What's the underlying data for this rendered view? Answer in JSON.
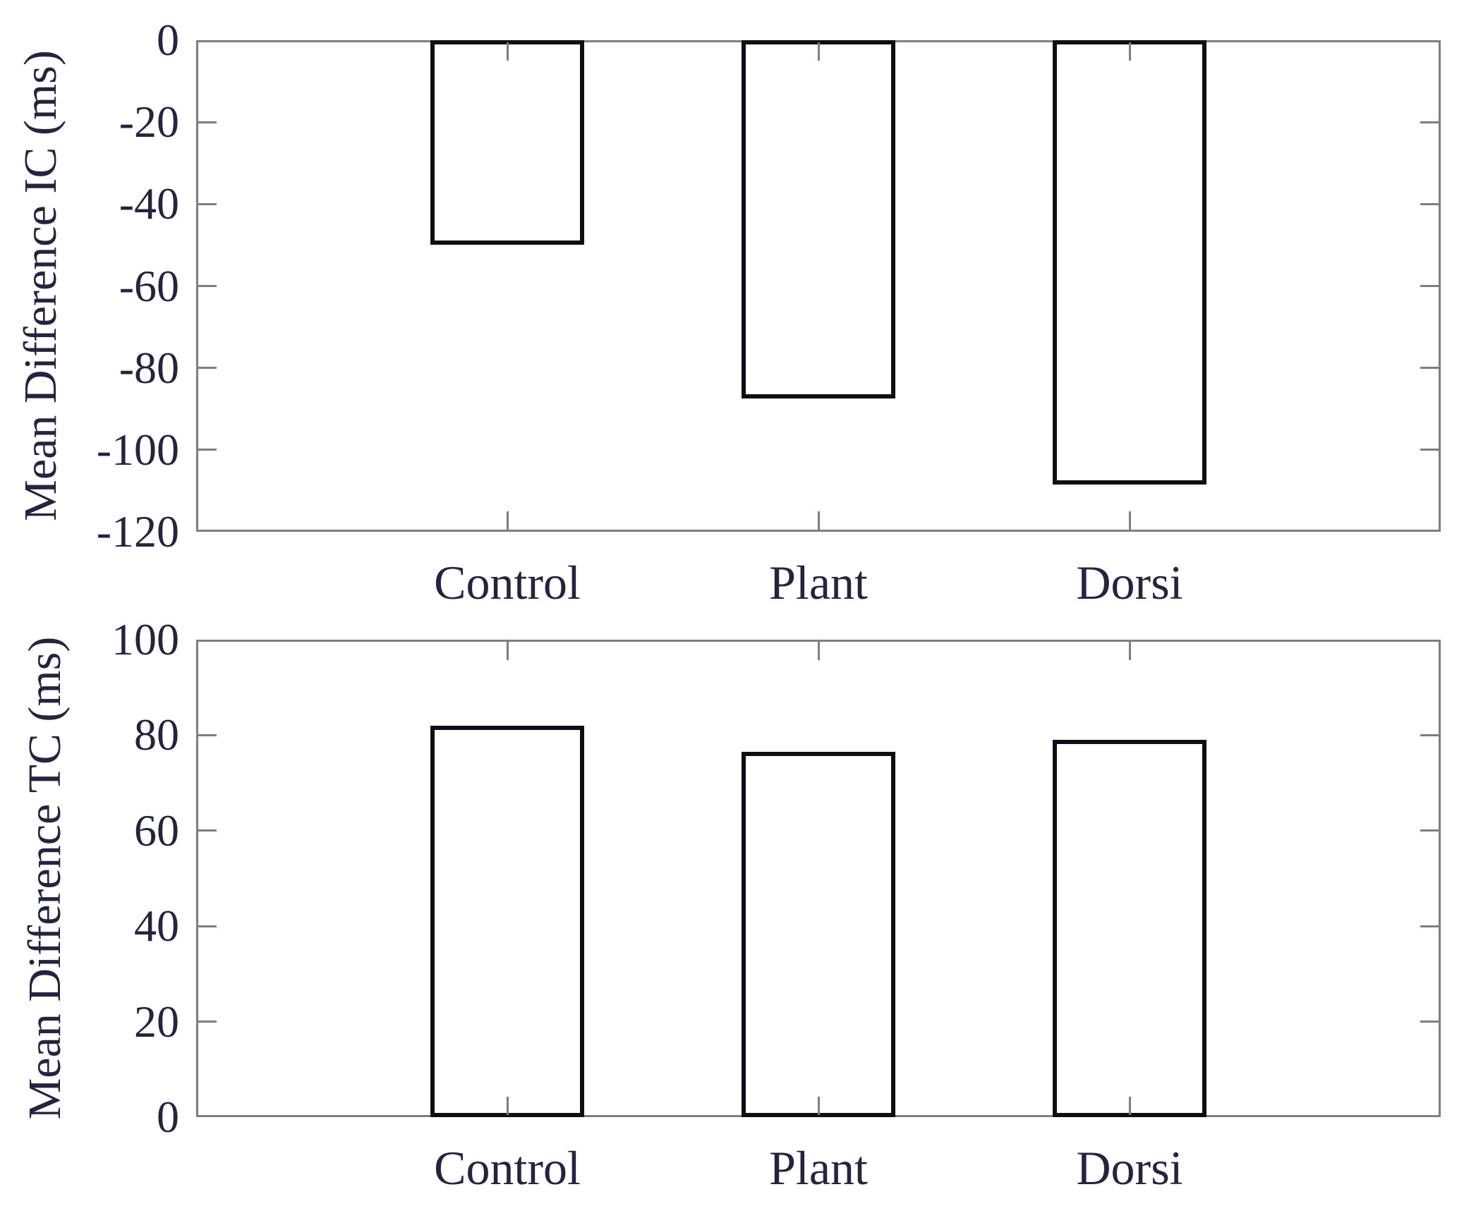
{
  "colors": {
    "text": "#232342",
    "frame": "#7d7d87",
    "bar_edge": "#0e0e16",
    "bar_fill": "#ffffff",
    "background": "#ffffff"
  },
  "chart_data": [
    {
      "type": "bar",
      "ylabel": "Mean Difference IC (ms)",
      "xlabel": "",
      "categories": [
        "Control",
        "Plant",
        "Dorsi"
      ],
      "values": [
        -50,
        -87.5,
        -108.5
      ],
      "ylim": [
        -120,
        0
      ],
      "yticks": [
        0,
        -20,
        -40,
        -60,
        -80,
        -100,
        -120
      ],
      "grid": false,
      "legend": "none",
      "bar_baseline": 0
    },
    {
      "type": "bar",
      "ylabel": "Mean Difference TC (ms)",
      "xlabel": "",
      "categories": [
        "Control",
        "Plant",
        "Dorsi"
      ],
      "values": [
        82,
        76.5,
        79
      ],
      "ylim": [
        0,
        100
      ],
      "yticks": [
        100,
        80,
        60,
        40,
        20,
        0
      ],
      "grid": false,
      "legend": "none",
      "bar_baseline": 0
    }
  ]
}
